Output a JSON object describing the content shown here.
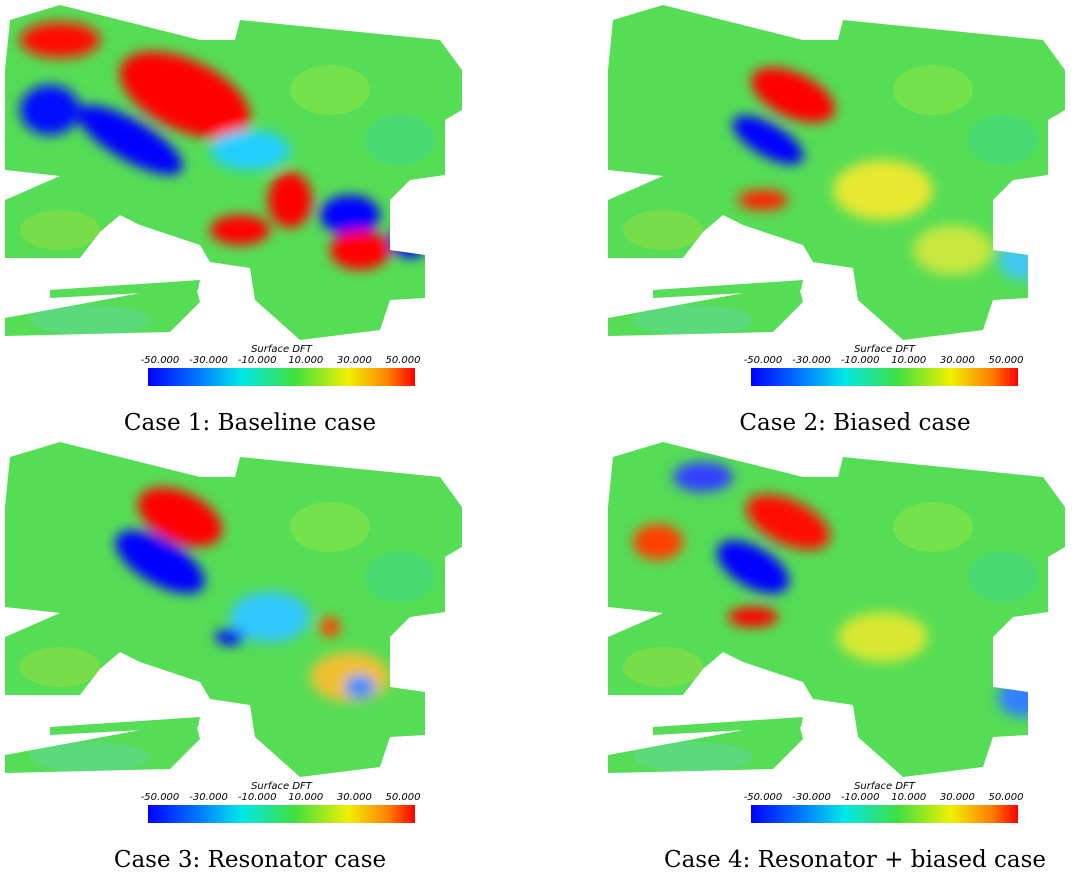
{
  "panels": [
    {
      "caption": "Case 1: Baseline case",
      "colorbar": {
        "title": "Surface DFT",
        "ticks": [
          "-50.000",
          "-30.000",
          "-10.000",
          "10.000",
          "30.000",
          "50.000"
        ]
      }
    },
    {
      "caption": "Case 2: Biased case",
      "colorbar": {
        "title": "Surface DFT",
        "ticks": [
          "-50.000",
          "-30.000",
          "-10.000",
          "10.000",
          "30.000",
          "50.000"
        ]
      }
    },
    {
      "caption": "Case 3: Resonator case",
      "colorbar": {
        "title": "Surface DFT",
        "ticks": [
          "-50.000",
          "-30.000",
          "-10.000",
          "10.000",
          "30.000",
          "50.000"
        ]
      }
    },
    {
      "caption": "Case 4: Resonator + biased case",
      "colorbar": {
        "title": "Surface DFT",
        "ticks": [
          "-50.000",
          "-30.000",
          "-10.000",
          "10.000",
          "30.000",
          "50.000"
        ]
      }
    }
  ]
}
